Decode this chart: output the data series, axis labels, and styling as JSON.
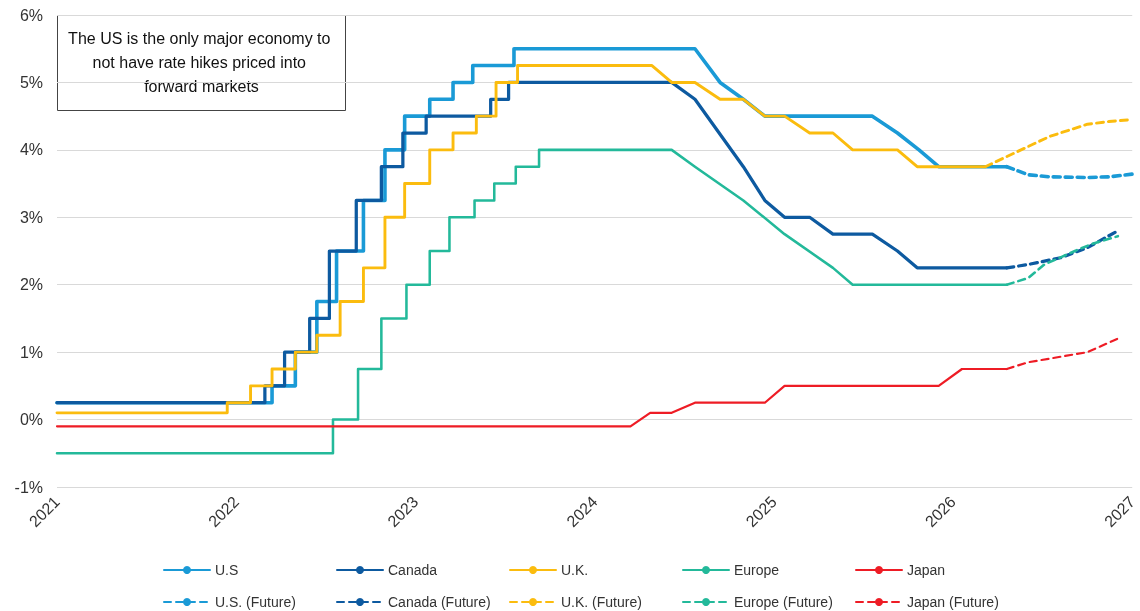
{
  "chart_data": {
    "type": "line",
    "xlim": [
      2021,
      2027
    ],
    "xticks": [
      2021,
      2022,
      2023,
      2024,
      2025,
      2026,
      2027
    ],
    "ylim": [
      -1,
      6
    ],
    "yticks": [
      {
        "value": -1,
        "label": "-1%"
      },
      {
        "value": 0,
        "label": "0%"
      },
      {
        "value": 1,
        "label": "1%"
      },
      {
        "value": 2,
        "label": "2%"
      },
      {
        "value": 3,
        "label": "3%"
      },
      {
        "value": 4,
        "label": "4%"
      },
      {
        "value": 5,
        "label": "5%"
      },
      {
        "value": 6,
        "label": "6%"
      }
    ],
    "grid": "y",
    "legend": "bottom",
    "marker": "none",
    "annotations": [
      "The US is the only major economy to not have rate hikes priced into forward markets"
    ],
    "series": [
      {
        "name": "U.S",
        "color": "#1a9ad6",
        "line_style": "solid",
        "x": [
          2021,
          2022.2,
          2022.2,
          2022.33,
          2022.33,
          2022.45,
          2022.45,
          2022.56,
          2022.56,
          2022.71,
          2022.71,
          2022.83,
          2022.83,
          2022.94,
          2022.94,
          2023.08,
          2023.08,
          2023.21,
          2023.21,
          2023.32,
          2023.32,
          2023.55,
          2023.55,
          2024.56,
          2024.7,
          2024.83,
          2024.95,
          2025.55,
          2025.69,
          2025.81,
          2025.92,
          2026.3
        ],
        "values": [
          0.25,
          0.25,
          0.5,
          0.5,
          1.0,
          1.0,
          1.75,
          1.75,
          2.5,
          2.5,
          3.25,
          3.25,
          4.0,
          4.0,
          4.5,
          4.5,
          4.75,
          4.75,
          5.0,
          5.0,
          5.25,
          5.25,
          5.5,
          5.5,
          5.0,
          4.75,
          4.5,
          4.5,
          4.25,
          4.0,
          3.75,
          3.75
        ]
      },
      {
        "name": "Canada",
        "color": "#0d5aa0",
        "line_style": "solid",
        "x": [
          2021,
          2022.16,
          2022.16,
          2022.27,
          2022.27,
          2022.41,
          2022.41,
          2022.52,
          2022.52,
          2022.67,
          2022.67,
          2022.81,
          2022.81,
          2022.93,
          2022.93,
          2023.06,
          2023.06,
          2023.42,
          2023.42,
          2023.52,
          2023.52,
          2024.43,
          2024.56,
          2024.83,
          2024.95,
          2025.06,
          2025.2,
          2025.33,
          2025.55,
          2025.69,
          2025.8,
          2026.3
        ],
        "values": [
          0.25,
          0.25,
          0.5,
          0.5,
          1.0,
          1.0,
          1.5,
          1.5,
          2.5,
          2.5,
          3.25,
          3.25,
          3.75,
          3.75,
          4.25,
          4.25,
          4.5,
          4.5,
          4.75,
          4.75,
          5.0,
          5.0,
          4.75,
          3.75,
          3.25,
          3.0,
          3.0,
          2.75,
          2.75,
          2.5,
          2.25,
          2.25
        ]
      },
      {
        "name": "U.K.",
        "color": "#fbbc0e",
        "line_style": "solid",
        "x": [
          2021,
          2021.95,
          2021.95,
          2022.08,
          2022.08,
          2022.2,
          2022.2,
          2022.33,
          2022.33,
          2022.45,
          2022.45,
          2022.58,
          2022.58,
          2022.71,
          2022.71,
          2022.83,
          2022.83,
          2022.94,
          2022.94,
          2023.08,
          2023.08,
          2023.21,
          2023.21,
          2023.34,
          2023.34,
          2023.45,
          2023.45,
          2023.57,
          2023.57,
          2024.32,
          2024.43,
          2024.56,
          2024.7,
          2024.83,
          2024.95,
          2025.06,
          2025.2,
          2025.33,
          2025.44,
          2025.69,
          2025.8,
          2026.18
        ],
        "values": [
          0.1,
          0.1,
          0.25,
          0.25,
          0.5,
          0.5,
          0.75,
          0.75,
          1.0,
          1.0,
          1.25,
          1.25,
          1.75,
          1.75,
          2.25,
          2.25,
          3.0,
          3.0,
          3.5,
          3.5,
          4.0,
          4.0,
          4.25,
          4.25,
          4.5,
          4.5,
          5.0,
          5.0,
          5.25,
          5.25,
          5.0,
          5.0,
          4.75,
          4.75,
          4.5,
          4.5,
          4.25,
          4.25,
          4.0,
          4.0,
          3.75,
          3.75
        ]
      },
      {
        "name": "Europe",
        "color": "#23b99a",
        "line_style": "solid",
        "x": [
          2021,
          2022.54,
          2022.54,
          2022.68,
          2022.68,
          2022.81,
          2022.81,
          2022.95,
          2022.95,
          2023.08,
          2023.08,
          2023.19,
          2023.19,
          2023.33,
          2023.33,
          2023.44,
          2023.44,
          2023.56,
          2023.56,
          2023.69,
          2023.69,
          2024.43,
          2024.56,
          2024.83,
          2025.06,
          2025.33,
          2025.44,
          2026.3
        ],
        "values": [
          -0.5,
          -0.5,
          0.0,
          0.0,
          0.75,
          0.75,
          1.5,
          1.5,
          2.0,
          2.0,
          2.5,
          2.5,
          3.0,
          3.0,
          3.25,
          3.25,
          3.5,
          3.5,
          3.75,
          3.75,
          4.0,
          4.0,
          3.75,
          3.25,
          2.75,
          2.25,
          2.0,
          2.0
        ]
      },
      {
        "name": "Japan",
        "color": "#ee1c25",
        "line_style": "solid",
        "x": [
          2021,
          2024.2,
          2024.31,
          2024.43,
          2024.56,
          2024.95,
          2025.06,
          2025.92,
          2026.05,
          2026.3
        ],
        "values": [
          -0.1,
          -0.1,
          0.1,
          0.1,
          0.25,
          0.25,
          0.5,
          0.5,
          0.75,
          0.75
        ]
      },
      {
        "name": "U.S. (Future)",
        "color": "#1a9ad6",
        "line_style": "dashed",
        "x": [
          2026.3,
          2026.42,
          2026.54,
          2026.75,
          2026.87,
          2027
        ],
        "values": [
          3.75,
          3.63,
          3.6,
          3.59,
          3.6,
          3.64
        ]
      },
      {
        "name": "Canada (Future)",
        "color": "#0d5aa0",
        "line_style": "dashed",
        "x": [
          2026.3,
          2026.42,
          2026.6,
          2026.75,
          2026.92
        ],
        "values": [
          2.25,
          2.3,
          2.4,
          2.55,
          2.8
        ]
      },
      {
        "name": "U.K. (Future)",
        "color": "#fbbc0e",
        "line_style": "dashed",
        "x": [
          2026.18,
          2026.34,
          2026.54,
          2026.75,
          2026.87,
          2027
        ],
        "values": [
          3.75,
          3.95,
          4.2,
          4.38,
          4.42,
          4.45
        ]
      },
      {
        "name": "Europe (Future)",
        "color": "#23b99a",
        "line_style": "dashed",
        "x": [
          2026.3,
          2026.42,
          2026.51,
          2026.68,
          2026.77,
          2026.92
        ],
        "values": [
          2.0,
          2.1,
          2.3,
          2.5,
          2.6,
          2.72
        ]
      },
      {
        "name": "Japan (Future)",
        "color": "#ee1c25",
        "line_style": "dashed",
        "x": [
          2026.3,
          2026.42,
          2026.75,
          2026.92
        ],
        "values": [
          0.75,
          0.85,
          1.0,
          1.2
        ]
      }
    ]
  }
}
